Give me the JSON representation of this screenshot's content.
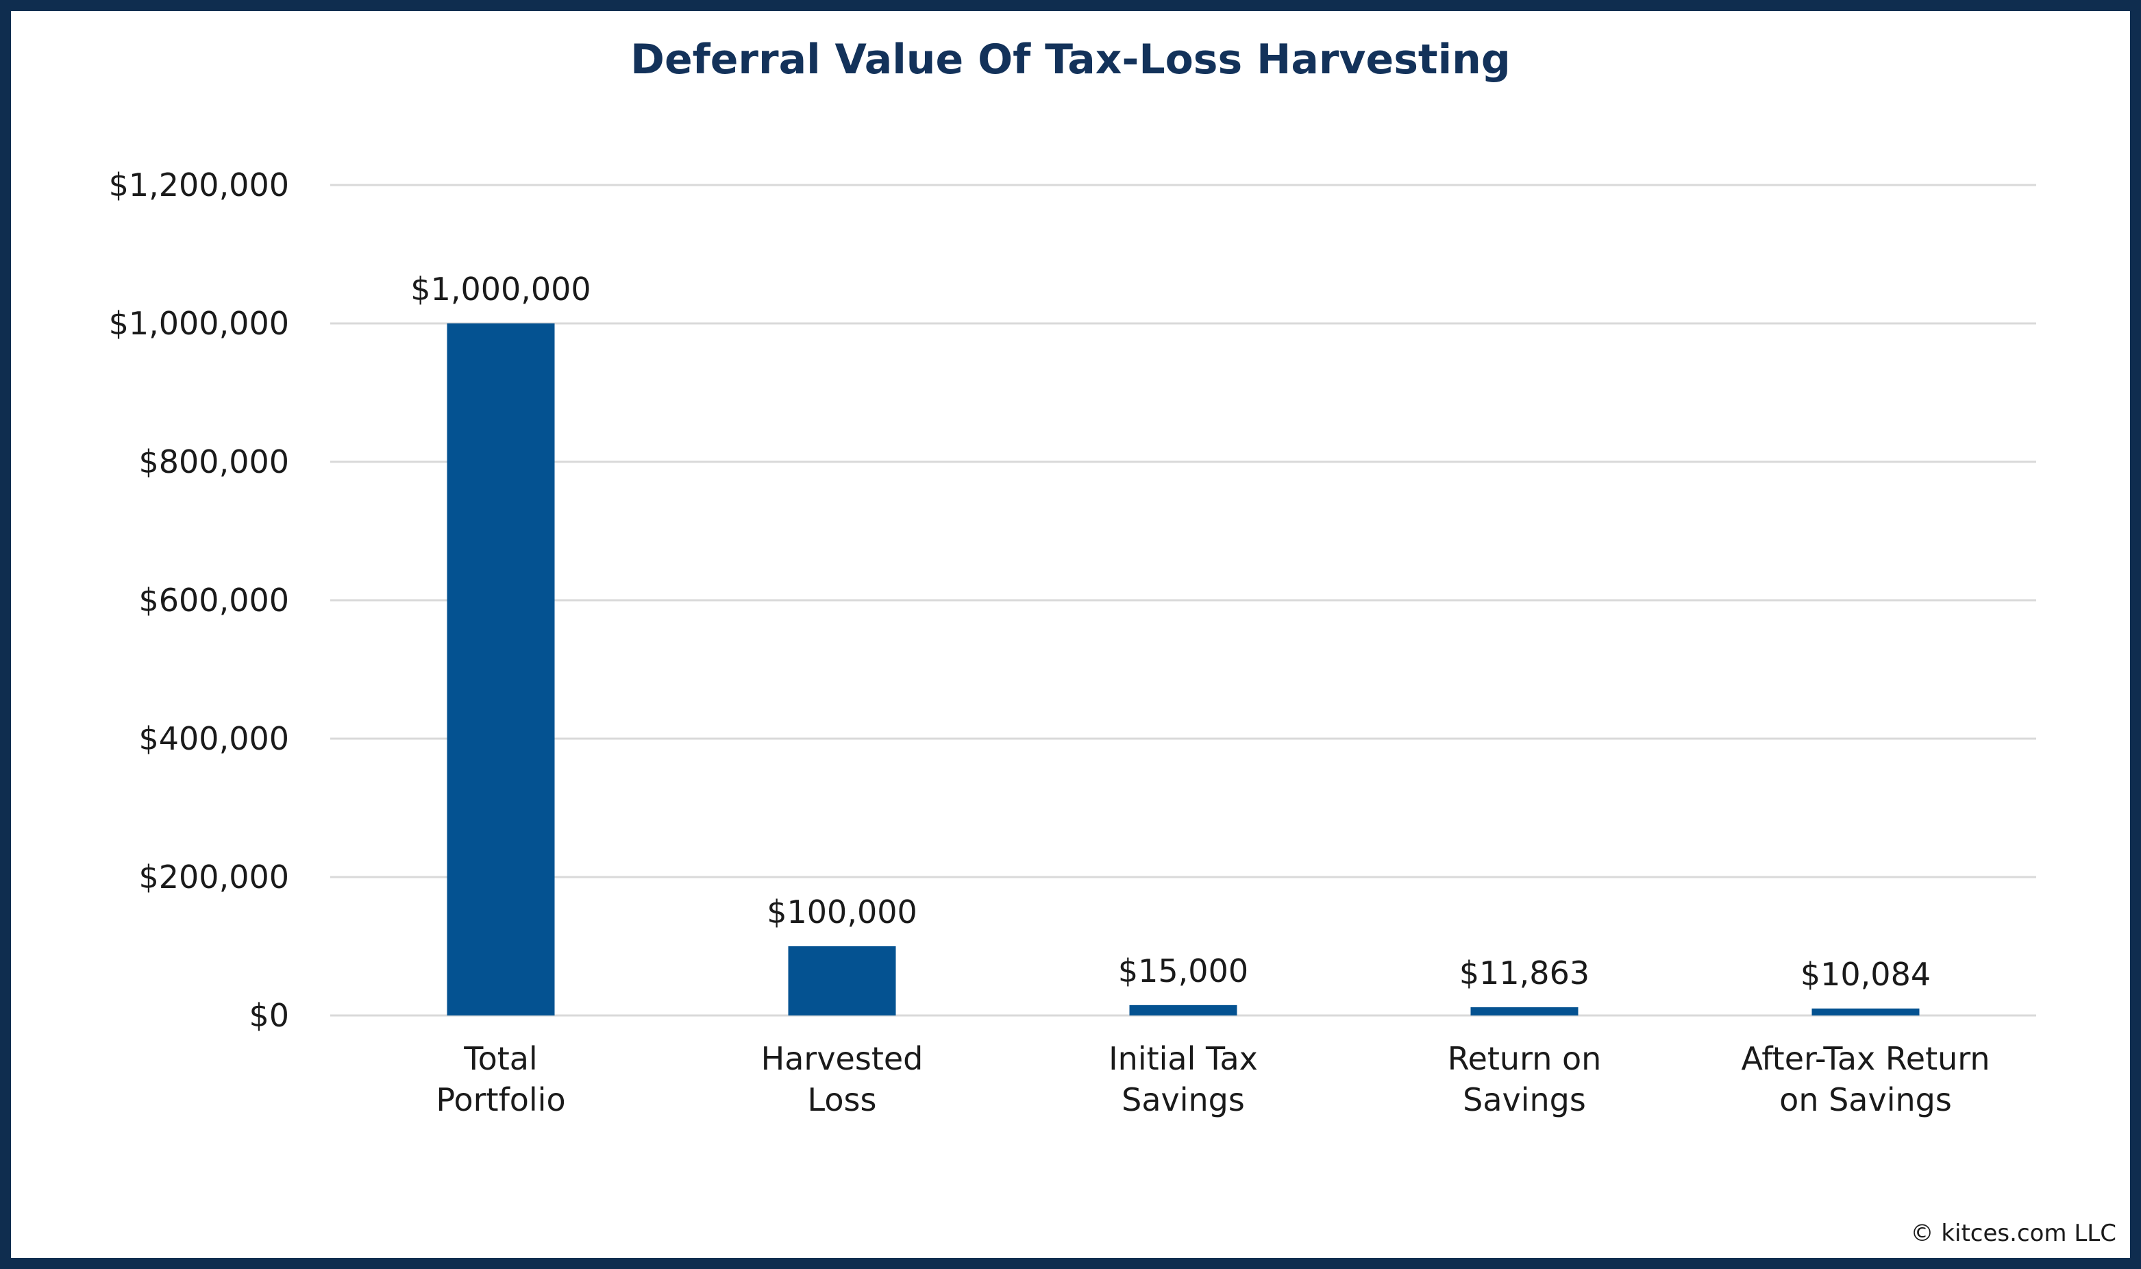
{
  "chart_data": {
    "type": "bar",
    "title": "Deferral Value Of Tax-Loss Harvesting",
    "categories": [
      [
        "Total",
        "Portfolio"
      ],
      [
        "Harvested",
        "Loss"
      ],
      [
        "Initial Tax",
        "Savings"
      ],
      [
        "Return on",
        "Savings"
      ],
      [
        "After-Tax Return",
        "on Savings"
      ]
    ],
    "values": [
      1000000,
      100000,
      15000,
      11863,
      10084
    ],
    "data_labels": [
      "$1,000,000",
      "$100,000",
      "$15,000",
      "$11,863",
      "$10,084"
    ],
    "xlabel": "",
    "ylabel": "",
    "ylim": [
      0,
      1200000
    ],
    "yticks": [
      0,
      200000,
      400000,
      600000,
      800000,
      1000000,
      1200000
    ],
    "ytick_labels": [
      "$0",
      "$200,000",
      "$400,000",
      "$600,000",
      "$800,000",
      "$1,000,000",
      "$1,200,000"
    ],
    "grid": true,
    "bar_color": "#045291",
    "grid_color": "#d9d9d9"
  },
  "footer": {
    "copyright": "© kitces.com LLC"
  },
  "colors": {
    "border": "#0f2d4f",
    "title": "#13325a"
  }
}
